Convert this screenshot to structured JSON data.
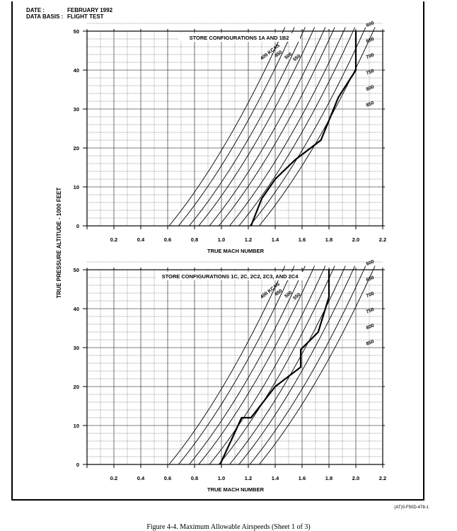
{
  "header": {
    "date_label": "DATE :",
    "date_value": "FEBRUARY 1992",
    "basis_label": "DATA BASIS :",
    "basis_value": "FLIGHT TEST"
  },
  "shared_ylabel": "TRUE PRESSURE ALTITUDE - 1000 FEET",
  "ref_code": "(AT)0-F50D-478-1",
  "figure_caption": "Figure 4-4.  Maximum Allowable Airspeeds (Sheet 1 of 3)",
  "chart_data": [
    {
      "type": "line",
      "title": "STORE CONFIGURATIONS 1A AND 1B2",
      "xlabel": "TRUE MACH NUMBER",
      "ylabel": "TRUE PRESSURE ALTITUDE - 1000 FEET",
      "xlim": [
        0.0,
        2.2
      ],
      "ylim": [
        0,
        50
      ],
      "xticks": [
        "0.2",
        "0.4",
        "0.6",
        "0.8",
        "1.0",
        "1.2",
        "1.4",
        "1.6",
        "1.8",
        "2.0",
        "2.2"
      ],
      "yticks": [
        "0",
        "10",
        "20",
        "30",
        "40",
        "50"
      ],
      "grid": true,
      "kcas_curves": [
        {
          "label": "400 KCAS",
          "mach_at_sea_level": 0.61
        },
        {
          "label": "450",
          "mach_at_sea_level": 0.68
        },
        {
          "label": "500",
          "mach_at_sea_level": 0.76
        },
        {
          "label": "550",
          "mach_at_sea_level": 0.83
        },
        {
          "label": "600",
          "mach_at_sea_level": 0.91
        },
        {
          "label": "650",
          "mach_at_sea_level": 0.98
        },
        {
          "label": "700",
          "mach_at_sea_level": 1.06
        },
        {
          "label": "750",
          "mach_at_sea_level": 1.13
        },
        {
          "label": "800",
          "mach_at_sea_level": 1.21
        },
        {
          "label": "850",
          "mach_at_sea_level": 1.28
        }
      ],
      "limit_line": {
        "name": "Maximum allowable airspeed",
        "points": [
          [
            1.22,
            0
          ],
          [
            1.3,
            7
          ],
          [
            1.4,
            12
          ],
          [
            1.55,
            17
          ],
          [
            1.74,
            22
          ],
          [
            1.87,
            33
          ],
          [
            2.0,
            40
          ],
          [
            2.0,
            50
          ]
        ]
      }
    },
    {
      "type": "line",
      "title": "STORE CONFIGURATIONS 1C, 2C, 2C2, 2C3, AND 2C4",
      "xlabel": "TRUE MACH NUMBER",
      "ylabel": "TRUE PRESSURE ALTITUDE - 1000 FEET",
      "xlim": [
        0.0,
        2.2
      ],
      "ylim": [
        0,
        50
      ],
      "xticks": [
        "0.2",
        "0.4",
        "0.6",
        "0.8",
        "1.0",
        "1.2",
        "1.4",
        "1.6",
        "1.8",
        "2.0",
        "2.2"
      ],
      "yticks": [
        "0",
        "10",
        "20",
        "30",
        "40",
        "50"
      ],
      "grid": true,
      "kcas_curves": [
        {
          "label": "400 KCAS",
          "mach_at_sea_level": 0.61
        },
        {
          "label": "450",
          "mach_at_sea_level": 0.68
        },
        {
          "label": "500",
          "mach_at_sea_level": 0.76
        },
        {
          "label": "550",
          "mach_at_sea_level": 0.83
        },
        {
          "label": "600",
          "mach_at_sea_level": 0.91
        },
        {
          "label": "650",
          "mach_at_sea_level": 0.98
        },
        {
          "label": "700",
          "mach_at_sea_level": 1.06
        },
        {
          "label": "750",
          "mach_at_sea_level": 1.13
        },
        {
          "label": "800",
          "mach_at_sea_level": 1.21
        },
        {
          "label": "850",
          "mach_at_sea_level": 1.28
        }
      ],
      "limit_line": {
        "name": "Maximum allowable airspeed",
        "points": [
          [
            0.99,
            0
          ],
          [
            1.15,
            12
          ],
          [
            1.22,
            12
          ],
          [
            1.4,
            20
          ],
          [
            1.59,
            25
          ],
          [
            1.59,
            29.5
          ],
          [
            1.72,
            34
          ],
          [
            1.8,
            43
          ],
          [
            1.8,
            50
          ]
        ]
      }
    }
  ]
}
